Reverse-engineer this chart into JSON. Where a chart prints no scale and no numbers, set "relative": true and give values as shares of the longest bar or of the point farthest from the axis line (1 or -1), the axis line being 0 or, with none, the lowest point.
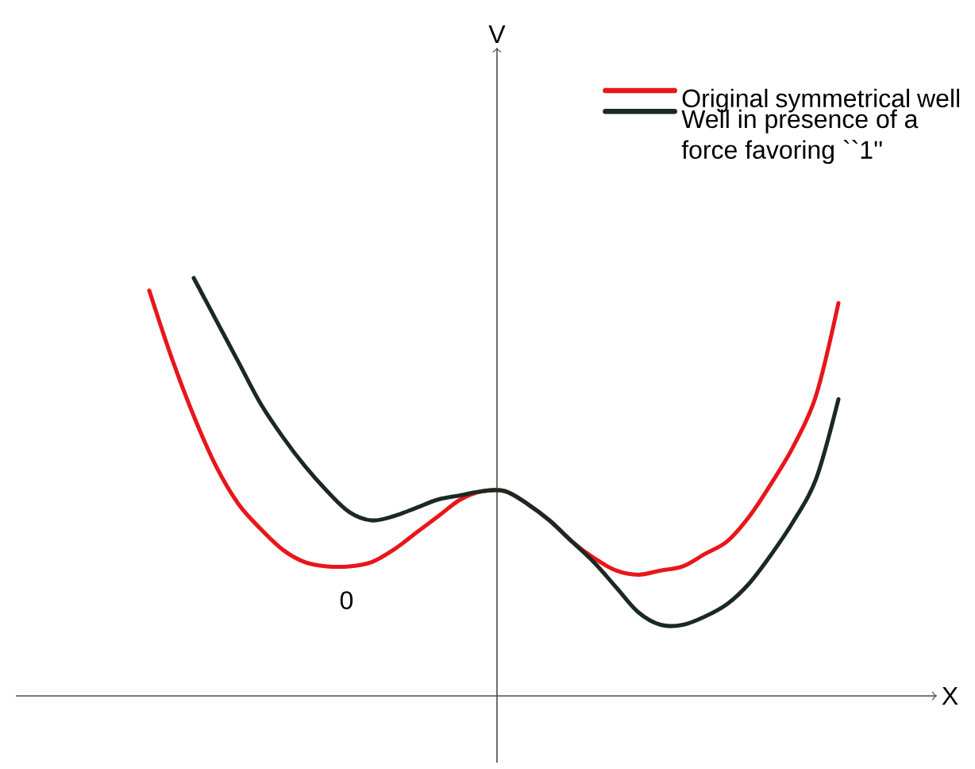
{
  "chart_data": {
    "type": "line",
    "relative": true,
    "xlabel": "X",
    "legend": "top right",
    "annotations": [
      "V",
      "0"
    ],
    "categories": [
      null,
      null,
      null,
      null,
      null,
      null,
      null,
      null,
      null,
      null,
      null,
      null,
      null,
      null,
      null,
      null,
      null,
      null,
      null,
      null,
      null,
      null,
      null,
      null,
      null,
      null,
      null,
      null,
      null,
      null,
      null,
      null
    ],
    "series": [
      {
        "name": "Original symmetrical well",
        "color": "#e8161b",
        "values": [
          0.97,
          0.81,
          0.67,
          0.55,
          0.46,
          0.4,
          0.35,
          0.32,
          0.31,
          0.31,
          0.32,
          0.35,
          0.39,
          0.43,
          0.47,
          0.49,
          0.49,
          0.46,
          0.42,
          0.37,
          0.33,
          0.3,
          0.29,
          0.3,
          0.31,
          0.34,
          0.37,
          0.43,
          0.51,
          0.6,
          0.72,
          0.94
        ]
      },
      {
        "name": "Well in presence of a force favoring ``1''",
        "color": "#1a2a22",
        "values": [
          null,
          null,
          1.0,
          0.9,
          0.8,
          0.7,
          0.62,
          0.55,
          0.49,
          0.44,
          0.42,
          0.43,
          0.45,
          0.47,
          0.48,
          0.49,
          0.49,
          0.46,
          0.42,
          0.37,
          0.32,
          0.26,
          0.2,
          0.17,
          0.17,
          0.19,
          0.22,
          0.27,
          0.34,
          0.42,
          0.52,
          0.71
        ]
      }
    ]
  }
}
